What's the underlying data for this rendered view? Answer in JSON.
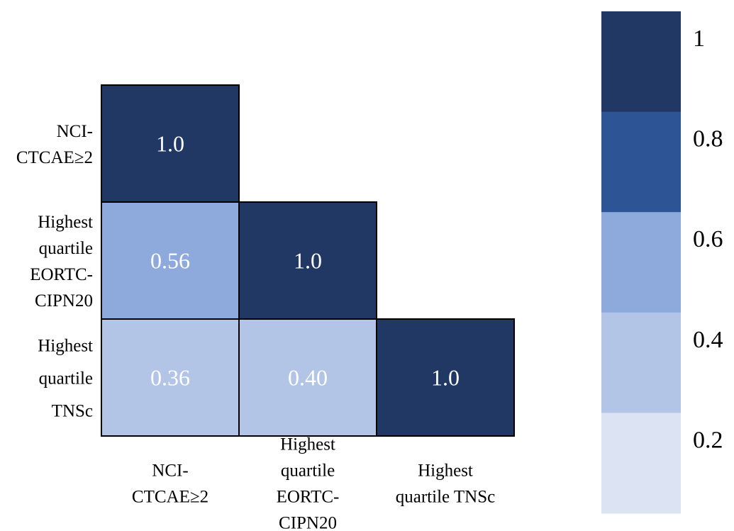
{
  "chart_data": {
    "type": "heatmap",
    "layout": "lower-triangle",
    "row_labels": [
      [
        "NCI-",
        "CTCAE≥2"
      ],
      [
        "Highest",
        "quartile",
        "EORTC-",
        "CIPN20"
      ],
      [
        "Highest",
        "quartile",
        "TNSc"
      ]
    ],
    "col_labels": [
      [
        "NCI-",
        "CTCAE≥2"
      ],
      [
        "Highest",
        "quartile",
        "EORTC-",
        "CIPN20"
      ],
      [
        "Highest",
        "quartile TNSc"
      ]
    ],
    "cells": [
      {
        "row": 0,
        "col": 0,
        "value": 1.0,
        "label": "1.0"
      },
      {
        "row": 1,
        "col": 0,
        "value": 0.56,
        "label": "0.56"
      },
      {
        "row": 1,
        "col": 1,
        "value": 1.0,
        "label": "1.0"
      },
      {
        "row": 2,
        "col": 0,
        "value": 0.36,
        "label": "0.36"
      },
      {
        "row": 2,
        "col": 1,
        "value": 0.4,
        "label": "0.40"
      },
      {
        "row": 2,
        "col": 2,
        "value": 1.0,
        "label": "1.0"
      }
    ],
    "colorscale": {
      "bins": [
        {
          "from": 0.0,
          "to": 0.2,
          "color": "#dce3f2"
        },
        {
          "from": 0.2,
          "to": 0.4,
          "color": "#b3c5e6"
        },
        {
          "from": 0.4,
          "to": 0.6,
          "color": "#8eaadd"
        },
        {
          "from": 0.6,
          "to": 0.8,
          "color": "#2d5494"
        },
        {
          "from": 0.8,
          "to": 1.0,
          "color": "#213864"
        }
      ],
      "tick_labels": [
        "1",
        "0.8",
        "0.6",
        "0.4",
        "0.2"
      ],
      "tick_values": [
        1.0,
        0.8,
        0.6,
        0.4,
        0.2
      ]
    },
    "cell_text_color": "#ffffff",
    "border_color": "#000000"
  }
}
